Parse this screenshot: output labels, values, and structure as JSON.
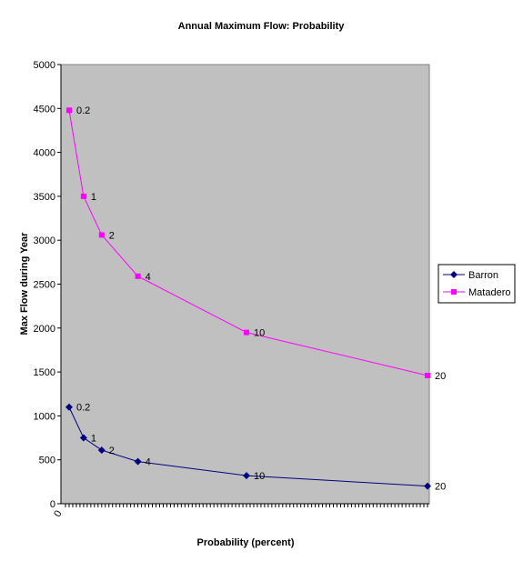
{
  "chart_data": {
    "type": "line",
    "title": "Annual Maximum Flow: Probability",
    "xlabel": "Probability (percent)",
    "ylabel": "Max Flow during Year",
    "x_tick_labels": [
      "0"
    ],
    "xlim": [
      0,
      20
    ],
    "ylim": [
      0,
      5000
    ],
    "y_ticks": [
      0,
      500,
      1000,
      1500,
      2000,
      2500,
      3000,
      3500,
      4000,
      4500,
      5000
    ],
    "grid": false,
    "plot_background": "#c0c0c0",
    "legend_position": "right",
    "series": [
      {
        "name": "Barron",
        "color": "#000080",
        "marker": "diamond",
        "points": [
          {
            "x": 0.2,
            "y": 1100,
            "label": "0.2"
          },
          {
            "x": 1,
            "y": 750,
            "label": "1"
          },
          {
            "x": 2,
            "y": 610,
            "label": "2"
          },
          {
            "x": 4,
            "y": 480,
            "label": "4"
          },
          {
            "x": 10,
            "y": 320,
            "label": "10"
          },
          {
            "x": 20,
            "y": 200,
            "label": "20"
          }
        ]
      },
      {
        "name": "Matadero",
        "color": "#ff00ff",
        "marker": "square",
        "points": [
          {
            "x": 0.2,
            "y": 4480,
            "label": "0.2"
          },
          {
            "x": 1,
            "y": 3500,
            "label": "1"
          },
          {
            "x": 2,
            "y": 3060,
            "label": "2"
          },
          {
            "x": 4,
            "y": 2590,
            "label": "4"
          },
          {
            "x": 10,
            "y": 1950,
            "label": "10"
          },
          {
            "x": 20,
            "y": 1460,
            "label": "20"
          }
        ]
      }
    ]
  }
}
